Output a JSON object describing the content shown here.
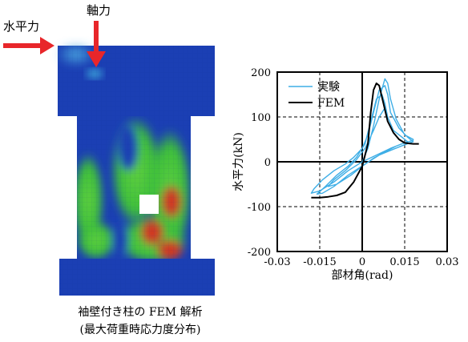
{
  "fem_figure": {
    "horizontal_force_label": "水平力",
    "axial_force_label": "軸力",
    "caption_line1": "袖壁付き柱の FEM 解析",
    "caption_line2": "(最大荷重時応力度分布)",
    "colors": {
      "arrow": "#e8262a",
      "low_stress": "#1b3fb4",
      "mid_stress": "#3ec03a",
      "high_stress": "#d8301e"
    }
  },
  "chart_data": {
    "type": "line",
    "xlabel": "部材角(rad)",
    "ylabel": "水平力(kN)",
    "xlim": [
      -0.03,
      0.03
    ],
    "ylim": [
      -200,
      200
    ],
    "x_ticks": [
      "-0.03",
      "-0.015",
      "0",
      "0.015",
      "0.03"
    ],
    "y_ticks": [
      "200",
      "100",
      "0",
      "-100",
      "-200"
    ],
    "grid": "dashed",
    "legend_position": "top-left",
    "series": [
      {
        "name": "実験",
        "color": "#3eaee6",
        "x": [
          0,
          0.002,
          0.004,
          0.006,
          0.008,
          0.009,
          0.01,
          0.012,
          0.015,
          0.018,
          0.018,
          0.014,
          0.01,
          0.005,
          0.0,
          -0.005,
          -0.01,
          -0.015,
          -0.018,
          -0.017,
          -0.014,
          -0.01,
          -0.006,
          -0.003,
          0.0,
          0.002,
          0.004,
          0.006,
          0.008,
          0.009,
          0.01,
          0.013,
          0.016,
          0.018,
          0.015,
          0.011,
          0.006,
          0.001,
          -0.005,
          -0.01,
          -0.014,
          -0.016,
          -0.013,
          -0.009,
          -0.005,
          -0.002,
          0.001,
          0.003,
          0.005,
          0.007,
          0.008,
          0.009,
          0.011,
          0.014,
          0.016,
          0.012,
          0.008,
          0.004,
          0.0,
          -0.004,
          -0.009,
          -0.012,
          -0.01,
          -0.006,
          -0.002,
          0.001,
          0.004,
          0.006,
          0.008
        ],
        "y": [
          0,
          30,
          80,
          140,
          185,
          175,
          140,
          95,
          60,
          50,
          48,
          40,
          30,
          15,
          0,
          -20,
          -45,
          -65,
          -70,
          -60,
          -40,
          -20,
          -5,
          10,
          30,
          60,
          110,
          160,
          170,
          150,
          110,
          75,
          55,
          45,
          38,
          28,
          15,
          -5,
          -30,
          -55,
          -70,
          -72,
          -55,
          -30,
          -10,
          10,
          40,
          90,
          140,
          150,
          130,
          100,
          70,
          55,
          45,
          35,
          22,
          8,
          -10,
          -30,
          -50,
          -55,
          -40,
          -20,
          5,
          30,
          70,
          100,
          120
        ]
      },
      {
        "name": "FEM",
        "color": "#000000",
        "x": [
          -0.018,
          -0.015,
          -0.012,
          -0.009,
          -0.006,
          -0.003,
          0.0,
          0.002,
          0.003,
          0.004,
          0.005,
          0.006,
          0.0075,
          0.009,
          0.011,
          0.013,
          0.015,
          0.018,
          0.02
        ],
        "y": [
          -80,
          -80,
          -78,
          -75,
          -68,
          -45,
          -10,
          40,
          110,
          160,
          175,
          170,
          130,
          90,
          65,
          50,
          42,
          40,
          40
        ]
      }
    ]
  }
}
